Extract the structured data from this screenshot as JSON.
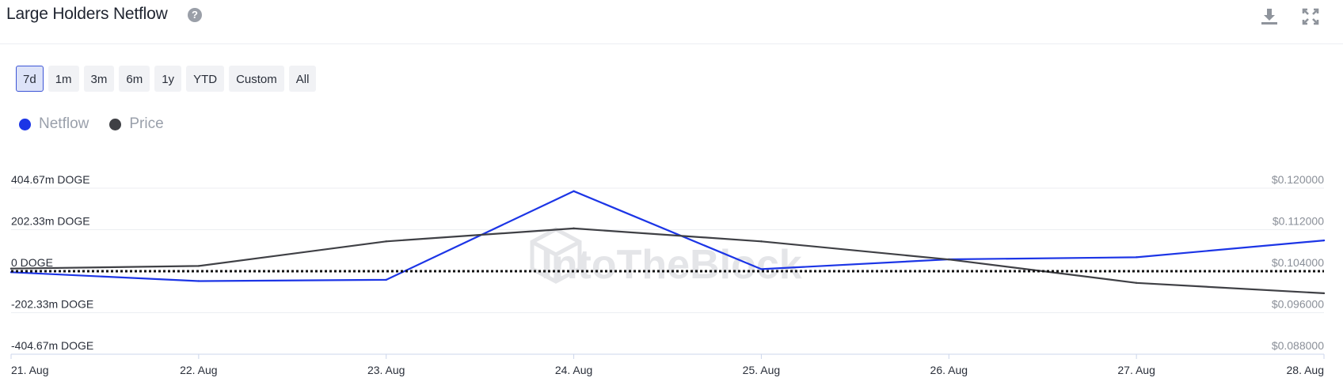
{
  "header": {
    "title": "Large Holders Netflow",
    "help_symbol": "?",
    "help_icon": "question-circle-icon",
    "download_icon": "download-icon",
    "expand_icon": "expand-icon"
  },
  "ranges": [
    "7d",
    "1m",
    "3m",
    "6m",
    "1y",
    "YTD",
    "Custom",
    "All"
  ],
  "active_range": "7d",
  "legend": [
    {
      "name": "Netflow",
      "color": "#1c35e6"
    },
    {
      "name": "Price",
      "color": "#3f4045"
    }
  ],
  "watermark": "IntoTheBlock",
  "chart_data": {
    "type": "line",
    "x": [
      "21. Aug",
      "22. Aug",
      "23. Aug",
      "24. Aug",
      "25. Aug",
      "26. Aug",
      "27. Aug",
      "28. Aug"
    ],
    "y_left": {
      "ticks": [
        "404.67m DOGE",
        "202.33m DOGE",
        "0 DOGE",
        "-202.33m DOGE",
        "-404.67m DOGE"
      ],
      "range": [
        -404.67,
        404.67
      ],
      "unit": "m DOGE"
    },
    "y_right": {
      "ticks": [
        "$0.120000",
        "$0.112000",
        "$0.104000",
        "$0.096000",
        "$0.088000"
      ],
      "range": [
        0.088,
        0.12
      ]
    },
    "series": [
      {
        "name": "Netflow",
        "axis": "left",
        "color": "#1c35e6",
        "values": [
          -5,
          -48,
          -42,
          390,
          10,
          58,
          68,
          150
        ]
      },
      {
        "name": "Price",
        "axis": "right",
        "color": "#3f4045",
        "values": [
          0.1045,
          0.105,
          0.10975,
          0.11225,
          0.10975,
          0.10625,
          0.10175,
          0.09975
        ]
      }
    ],
    "zero_line": "dotted",
    "grid": true
  }
}
